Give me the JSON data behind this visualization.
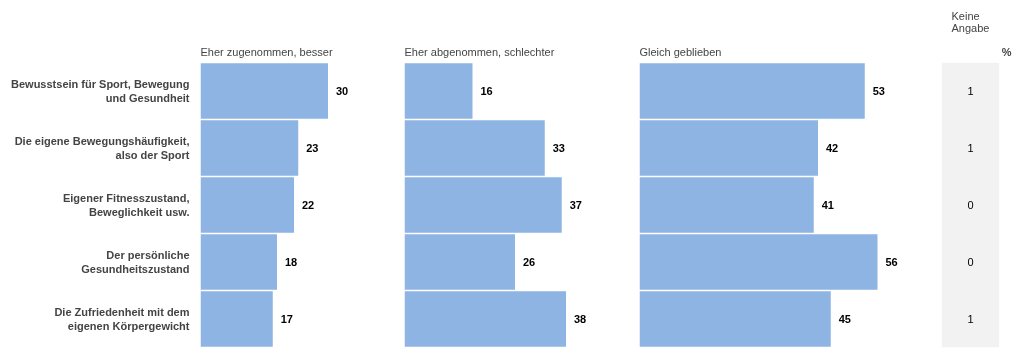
{
  "chart_data": [
    {
      "type": "bar",
      "orientation": "horizontal",
      "title": "Eher zugenommen, besser",
      "categories": [
        "Bewusstsein für Sport, Bewegung und Gesundheit",
        "Die eigene Bewegungshäufigkeit, also der Sport",
        "Eigener Fitnesszustand, Beweglichkeit usw.",
        "Der persönliche Gesundheitszustand",
        "Die Zufriedenheit mit dem eigenen Körpergewicht"
      ],
      "values": [
        30,
        23,
        22,
        18,
        17
      ],
      "color": "#8eb4e3",
      "data_labels": true,
      "tick_labels": "y"
    },
    {
      "type": "bar",
      "orientation": "horizontal",
      "title": "Eher abgenommen, schlechter",
      "values": [
        16,
        33,
        37,
        26,
        38
      ],
      "color": "#8eb4e3",
      "data_labels": true,
      "tick_labels": false
    },
    {
      "type": "bar",
      "orientation": "horizontal",
      "title": "Gleich geblieben",
      "values": [
        53,
        42,
        41,
        56,
        45
      ],
      "color": "#8eb4e3",
      "data_labels": true,
      "tick_labels": false
    },
    {
      "type": "other",
      "title": "Keine Angabe",
      "annotations": [
        "%",
        "1",
        "1",
        "0",
        "0",
        "1"
      ]
    }
  ]
}
